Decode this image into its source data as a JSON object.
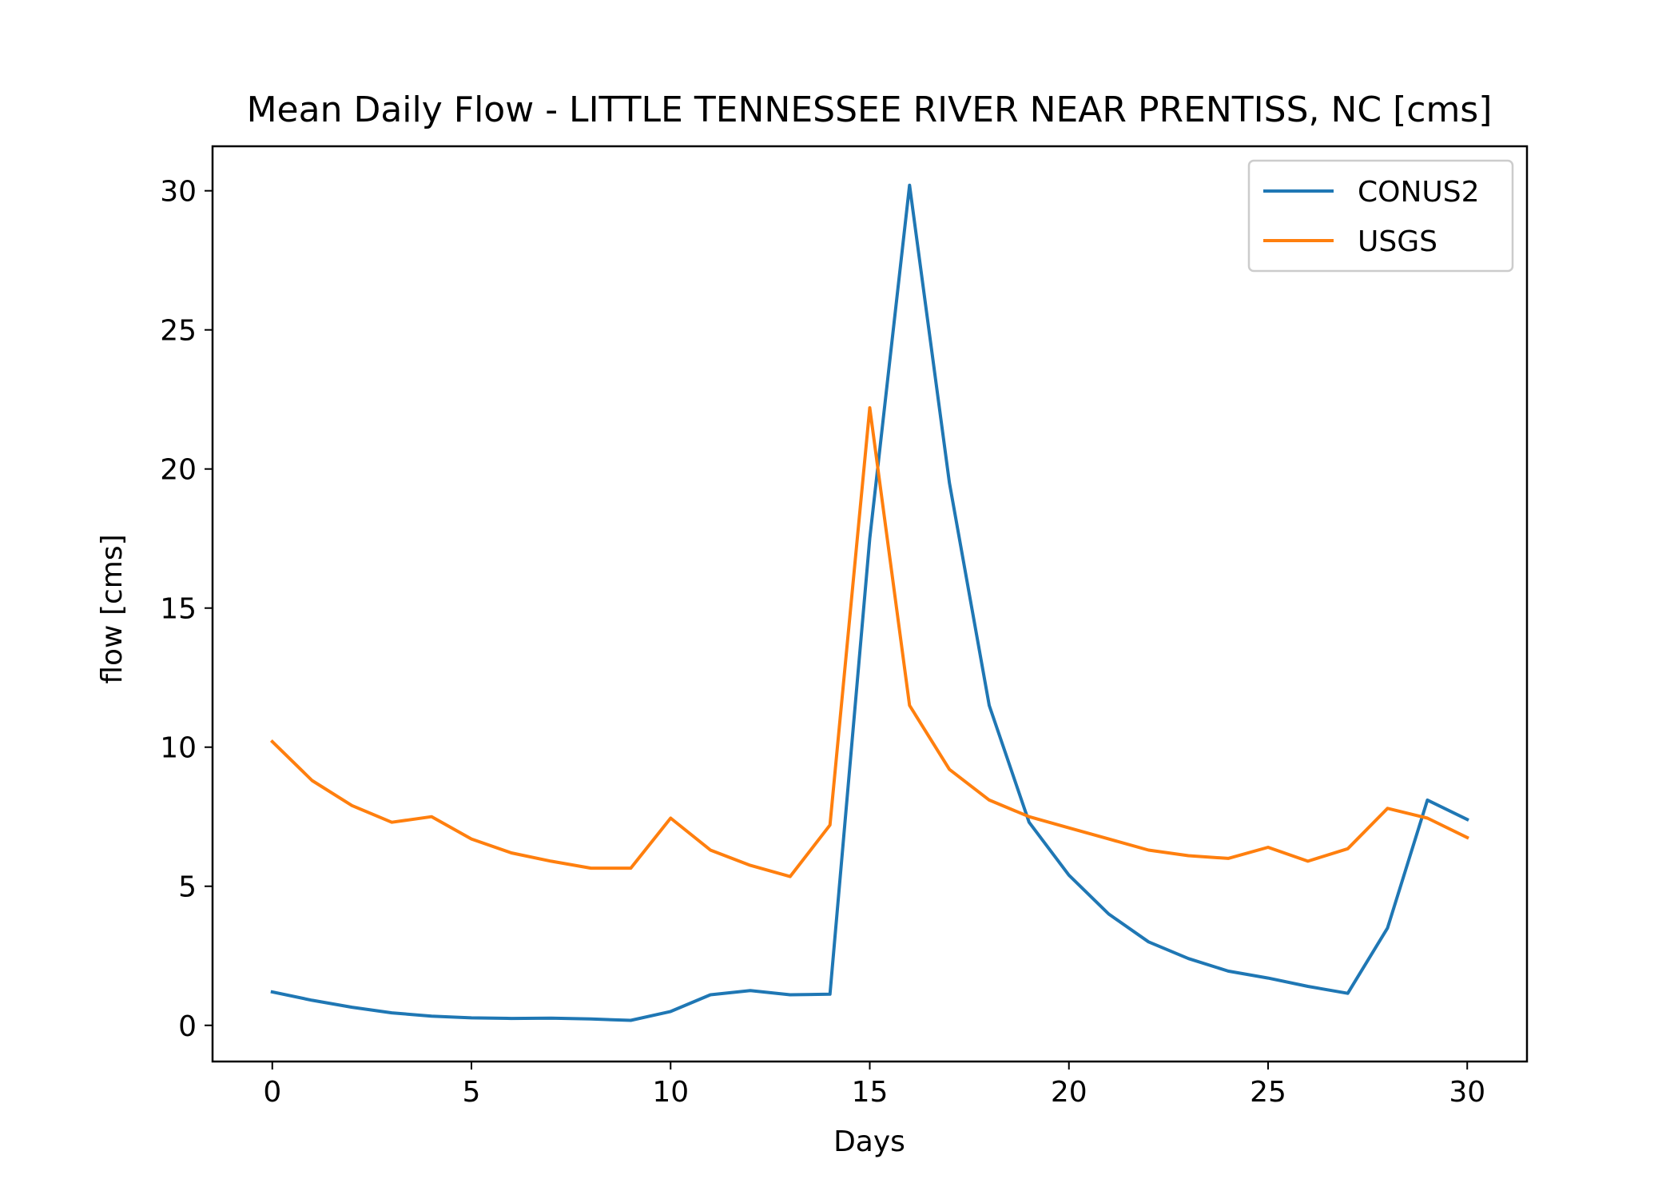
{
  "chart_data": {
    "type": "line",
    "title": "Mean Daily Flow - LITTLE TENNESSEE RIVER NEAR PRENTISS, NC [cms]",
    "xlabel": "Days",
    "ylabel": "flow [cms]",
    "xlim": [
      -1.5,
      31.5
    ],
    "ylim": [
      -1.3,
      31.6
    ],
    "xticks": [
      0,
      5,
      10,
      15,
      20,
      25,
      30
    ],
    "yticks": [
      0,
      5,
      10,
      15,
      20,
      25,
      30
    ],
    "grid": false,
    "legend_position": "top-right",
    "x": [
      0,
      1,
      2,
      3,
      4,
      5,
      6,
      7,
      8,
      9,
      10,
      11,
      12,
      13,
      14,
      15,
      16,
      17,
      18,
      19,
      20,
      21,
      22,
      23,
      24,
      25,
      26,
      27,
      28,
      29,
      30
    ],
    "series": [
      {
        "name": "CONUS2",
        "color": "#1f77b4",
        "values": [
          1.2,
          0.9,
          0.65,
          0.45,
          0.33,
          0.27,
          0.25,
          0.26,
          0.23,
          0.18,
          0.5,
          1.1,
          1.25,
          1.1,
          1.12,
          17.5,
          30.2,
          19.5,
          11.5,
          7.3,
          5.4,
          4.0,
          3.0,
          2.4,
          1.95,
          1.7,
          1.4,
          1.15,
          3.5,
          8.1,
          7.4
        ]
      },
      {
        "name": "USGS",
        "color": "#ff7f0e",
        "values": [
          10.2,
          8.8,
          7.9,
          7.3,
          7.5,
          6.7,
          6.2,
          5.9,
          5.65,
          5.65,
          7.45,
          6.3,
          5.75,
          5.35,
          7.2,
          22.2,
          11.5,
          9.2,
          8.1,
          7.5,
          7.1,
          6.7,
          6.3,
          6.1,
          6.0,
          6.4,
          5.9,
          6.35,
          7.8,
          7.45,
          6.75
        ]
      }
    ]
  }
}
